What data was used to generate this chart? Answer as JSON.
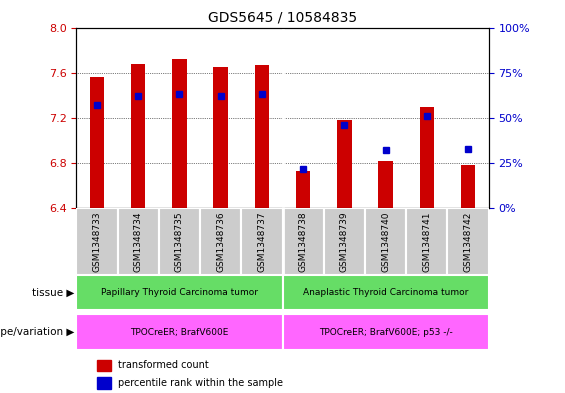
{
  "title": "GDS5645 / 10584835",
  "samples": [
    "GSM1348733",
    "GSM1348734",
    "GSM1348735",
    "GSM1348736",
    "GSM1348737",
    "GSM1348738",
    "GSM1348739",
    "GSM1348740",
    "GSM1348741",
    "GSM1348742"
  ],
  "transformed_counts": [
    7.56,
    7.68,
    7.72,
    7.65,
    7.67,
    6.73,
    7.18,
    6.82,
    7.3,
    6.78
  ],
  "percentile_ranks": [
    57,
    62,
    63,
    62,
    63,
    22,
    46,
    32,
    51,
    33
  ],
  "ylim_left": [
    6.4,
    8.0
  ],
  "ylim_right": [
    0,
    100
  ],
  "yticks_left": [
    6.4,
    6.8,
    7.2,
    7.6,
    8.0
  ],
  "yticks_right": [
    0,
    25,
    50,
    75,
    100
  ],
  "bar_color": "#cc0000",
  "dot_color": "#0000cc",
  "bar_bottom": 6.4,
  "tissue_groups": [
    {
      "label": "Papillary Thyroid Carcinoma tumor",
      "start": 0,
      "end": 5,
      "color": "#66dd66"
    },
    {
      "label": "Anaplastic Thyroid Carcinoma tumor",
      "start": 5,
      "end": 10,
      "color": "#66dd66"
    }
  ],
  "genotype_groups": [
    {
      "label": "TPOCreER; BrafV600E",
      "start": 0,
      "end": 5,
      "color": "#ff66ff"
    },
    {
      "label": "TPOCreER; BrafV600E; p53 -/-",
      "start": 5,
      "end": 10,
      "color": "#ff66ff"
    }
  ],
  "tissue_label": "tissue",
  "genotype_label": "genotype/variation",
  "legend_items": [
    {
      "label": "transformed count",
      "color": "#cc0000"
    },
    {
      "label": "percentile rank within the sample",
      "color": "#0000cc"
    }
  ],
  "tick_label_color_left": "#cc0000",
  "tick_label_color_right": "#0000cc",
  "xtick_bg_color": "#cccccc",
  "bar_width": 0.35,
  "divider_positions": [
    4.5
  ]
}
